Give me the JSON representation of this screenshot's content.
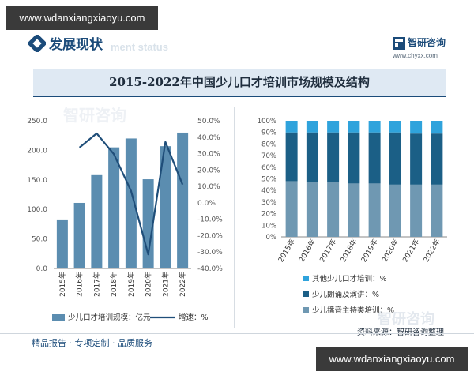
{
  "watermark": {
    "top": "www.wdanxiangxiaoyu.com",
    "bottom": "www.wdanxiangxiaoyu.com"
  },
  "header": {
    "section_title": "发展现状",
    "section_ghost": "ment status",
    "brand_name": "智研咨询",
    "brand_url": "www.chyxx.com",
    "chart_title": "2015-2022年中国少儿口才培训市场规模及结构"
  },
  "ghost_text": {
    "top": "智研咨询",
    "bottom": "智研咨询"
  },
  "footer": {
    "left": "精品报告 · 专项定制 · 品质服务",
    "source": "资料来源：智研咨询整理"
  },
  "colors": {
    "accent": "#1b4b7a",
    "bar": "#5b8db0",
    "line": "#1f4e79",
    "seg_top": "#2fa3dc",
    "seg_mid": "#1b5f86",
    "seg_bot": "#6f98b2"
  },
  "chart_data": [
    {
      "type": "bar",
      "categories": [
        "2015年",
        "2016年",
        "2017年",
        "2018年",
        "2019年",
        "2020年",
        "2021年",
        "2022年"
      ],
      "series": [
        {
          "name": "少儿口才培训规模：亿元",
          "type": "bar",
          "axis": "left",
          "values": [
            83,
            111,
            158,
            205,
            220,
            151,
            207,
            230
          ]
        },
        {
          "name": "增速：%",
          "type": "line",
          "axis": "right",
          "values": [
            null,
            33.7,
            42.3,
            29.7,
            7.3,
            -31.4,
            37.1,
            11.1
          ]
        }
      ],
      "yleft": {
        "lim": [
          0,
          250
        ],
        "ticks": [
          "0.0",
          "50.0",
          "100.0",
          "150.0",
          "200.0",
          "250.0"
        ]
      },
      "yright": {
        "lim": [
          -40,
          50
        ],
        "ticks": [
          "-40.0%",
          "-30.0%",
          "-20.0%",
          "-10.0%",
          "0.0%",
          "10.0%",
          "20.0%",
          "30.0%",
          "40.0%",
          "50.0%"
        ]
      },
      "legend_position": "bottom",
      "grid": false
    },
    {
      "type": "bar",
      "stacked": true,
      "percent": true,
      "categories": [
        "2015年",
        "2016年",
        "2017年",
        "2018年",
        "2019年",
        "2020年",
        "2021年",
        "2022年"
      ],
      "series": [
        {
          "name": "少儿播音主持类培训：%",
          "values": [
            48,
            47,
            47,
            46,
            46,
            45,
            45,
            45
          ]
        },
        {
          "name": "少儿朗诵及演讲：%",
          "values": [
            42,
            43,
            43,
            44,
            44,
            45,
            44,
            44
          ]
        },
        {
          "name": "其他少儿口才培训：%",
          "values": [
            10,
            10,
            10,
            10,
            10,
            10,
            11,
            11
          ]
        }
      ],
      "yaxis": {
        "lim": [
          0,
          100
        ],
        "ticks": [
          "0%",
          "10%",
          "20%",
          "30%",
          "40%",
          "50%",
          "60%",
          "70%",
          "80%",
          "90%",
          "100%"
        ]
      },
      "legend_position": "bottom",
      "grid": false
    }
  ]
}
